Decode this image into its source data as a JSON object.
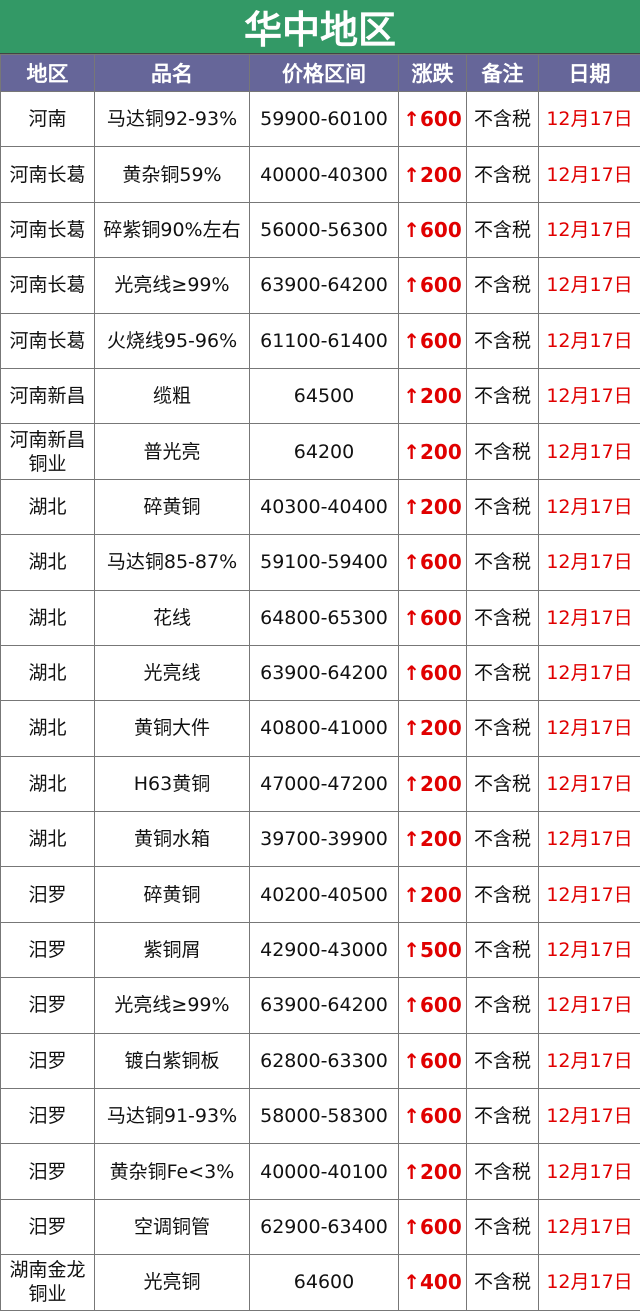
{
  "title": "华中地区",
  "columns": [
    "地区",
    "品名",
    "价格区间",
    "涨跌",
    "备注",
    "日期"
  ],
  "colors": {
    "title_bg": "#339966",
    "header_bg": "#666699",
    "change": "#e00000"
  },
  "rows": [
    [
      "河南",
      "马达铜92-93%",
      "59900-60100",
      "↑600",
      "不含税",
      "12月17日"
    ],
    [
      "河南长葛",
      "黄杂铜59%",
      "40000-40300",
      "↑200",
      "不含税",
      "12月17日"
    ],
    [
      "河南长葛",
      "碎紫铜90%左右",
      "56000-56300",
      "↑600",
      "不含税",
      "12月17日"
    ],
    [
      "河南长葛",
      "光亮线≥99%",
      "63900-64200",
      "↑600",
      "不含税",
      "12月17日"
    ],
    [
      "河南长葛",
      "火烧线95-96%",
      "61100-61400",
      "↑600",
      "不含税",
      "12月17日"
    ],
    [
      "河南新昌",
      "缆粗",
      "64500",
      "↑200",
      "不含税",
      "12月17日"
    ],
    [
      "河南新昌铜业",
      "普光亮",
      "64200",
      "↑200",
      "不含税",
      "12月17日"
    ],
    [
      "湖北",
      "碎黄铜",
      "40300-40400",
      "↑200",
      "不含税",
      "12月17日"
    ],
    [
      "湖北",
      "马达铜85-87%",
      "59100-59400",
      "↑600",
      "不含税",
      "12月17日"
    ],
    [
      "湖北",
      "花线",
      "64800-65300",
      "↑600",
      "不含税",
      "12月17日"
    ],
    [
      "湖北",
      "光亮线",
      "63900-64200",
      "↑600",
      "不含税",
      "12月17日"
    ],
    [
      "湖北",
      "黄铜大件",
      "40800-41000",
      "↑200",
      "不含税",
      "12月17日"
    ],
    [
      "湖北",
      "H63黄铜",
      "47000-47200",
      "↑200",
      "不含税",
      "12月17日"
    ],
    [
      "湖北",
      "黄铜水箱",
      "39700-39900",
      "↑200",
      "不含税",
      "12月17日"
    ],
    [
      "汨罗",
      "碎黄铜",
      "40200-40500",
      "↑200",
      "不含税",
      "12月17日"
    ],
    [
      "汨罗",
      "紫铜屑",
      "42900-43000",
      "↑500",
      "不含税",
      "12月17日"
    ],
    [
      "汨罗",
      "光亮线≥99%",
      "63900-64200",
      "↑600",
      "不含税",
      "12月17日"
    ],
    [
      "汨罗",
      "镀白紫铜板",
      "62800-63300",
      "↑600",
      "不含税",
      "12月17日"
    ],
    [
      "汨罗",
      "马达铜91-93%",
      "58000-58300",
      "↑600",
      "不含税",
      "12月17日"
    ],
    [
      "汨罗",
      "黄杂铜Fe<3%",
      "40000-40100",
      "↑200",
      "不含税",
      "12月17日"
    ],
    [
      "汨罗",
      "空调铜管",
      "62900-63400",
      "↑600",
      "不含税",
      "12月17日"
    ],
    [
      "湖南金龙铜业",
      "光亮铜",
      "64600",
      "↑400",
      "不含税",
      "12月17日"
    ]
  ]
}
